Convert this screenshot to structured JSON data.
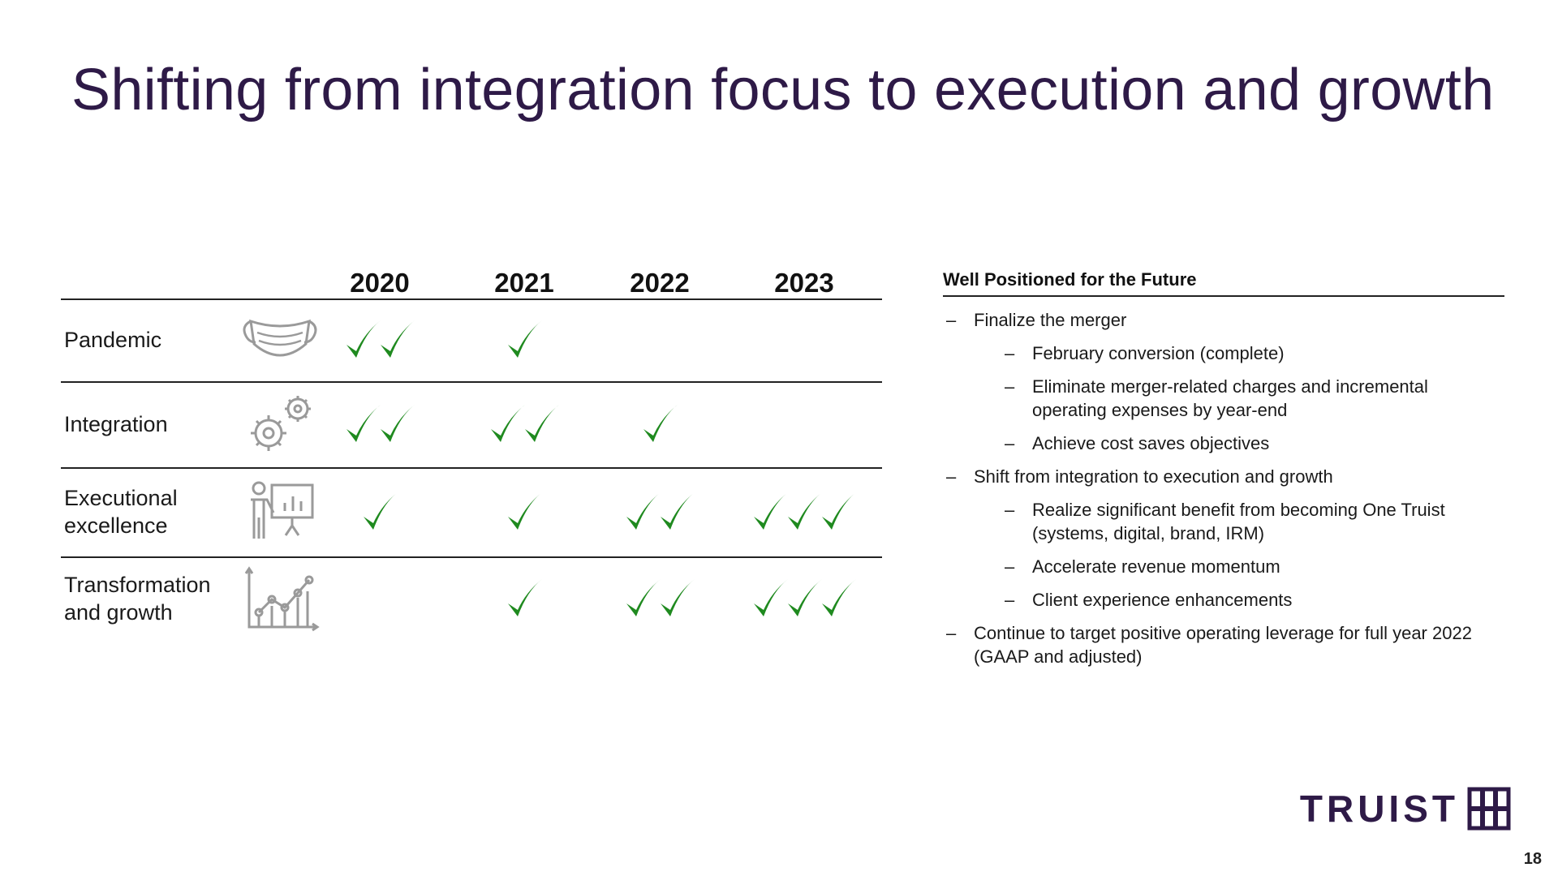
{
  "title": "Shifting from integration focus to execution and growth",
  "matrix": {
    "years": [
      "2020",
      "2021",
      "2022",
      "2023"
    ],
    "check_color": "#1f8a1f",
    "rows": [
      {
        "label_line1": "Pandemic",
        "label_line2": "",
        "icon": "face-mask-icon",
        "checks": [
          2,
          1,
          0,
          0
        ]
      },
      {
        "label_line1": "Integration",
        "label_line2": "",
        "icon": "gears-icon",
        "checks": [
          2,
          2,
          1,
          0
        ]
      },
      {
        "label_line1": "Executional",
        "label_line2": "excellence",
        "icon": "presenter-chart-icon",
        "checks": [
          1,
          1,
          2,
          3
        ]
      },
      {
        "label_line1": "Transformation",
        "label_line2": "and growth",
        "icon": "growth-chart-icon",
        "checks": [
          0,
          1,
          2,
          3
        ]
      }
    ]
  },
  "panel": {
    "heading": "Well Positioned for the Future",
    "items": [
      {
        "level": 1,
        "text": "Finalize the merger"
      },
      {
        "level": 2,
        "text": "February conversion (complete)"
      },
      {
        "level": 2,
        "text": "Eliminate merger-related charges and incremental operating expenses by year-end"
      },
      {
        "level": 2,
        "text": "Achieve cost saves objectives"
      },
      {
        "level": 1,
        "text": "Shift from integration to execution and growth"
      },
      {
        "level": 2,
        "text": "Realize significant benefit from becoming One Truist (systems, digital, brand, IRM)"
      },
      {
        "level": 2,
        "text": "Accelerate revenue momentum"
      },
      {
        "level": 2,
        "text": "Client experience enhancements"
      },
      {
        "level": 1,
        "text": "Continue to target positive operating leverage for full year 2022 (GAAP and adjusted)"
      }
    ],
    "dash": "–"
  },
  "logo": {
    "text": "TRUIST",
    "mark": "truist-logo-mark"
  },
  "page_number": "18",
  "colors": {
    "title": "#2e1a47",
    "accent": "#2e1a47",
    "check": "#1f8a1f"
  }
}
